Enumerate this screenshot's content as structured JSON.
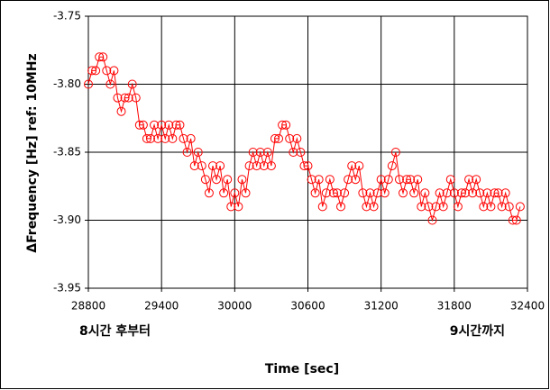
{
  "chart_data": {
    "type": "line",
    "x_label": "Time [sec]",
    "y_label": "ΔFrequency [Hz] ref: 10MHz",
    "annotations": [
      "8시간 후부터",
      "9시간까지"
    ],
    "xlim": [
      28800,
      32400
    ],
    "xticks": [
      28800,
      29400,
      30000,
      30600,
      31200,
      31800,
      32400
    ],
    "ylim": [
      -3.95,
      -3.75
    ],
    "yticks": [
      -3.75,
      {
        "value": -3.8,
        "label": "-3.80"
      },
      -3.85,
      {
        "value": -3.9,
        "label": "-3.90"
      },
      -3.95
    ],
    "grid": true,
    "x": [
      28800,
      28830,
      28860,
      28890,
      28920,
      28950,
      28980,
      29010,
      29040,
      29070,
      29100,
      29130,
      29160,
      29190,
      29220,
      29250,
      29280,
      29310,
      29340,
      29370,
      29400,
      29430,
      29460,
      29490,
      29520,
      29550,
      29580,
      29610,
      29640,
      29670,
      29700,
      29730,
      29760,
      29790,
      29820,
      29850,
      29880,
      29910,
      29940,
      29970,
      30000,
      30030,
      30060,
      30090,
      30120,
      30150,
      30180,
      30210,
      30240,
      30270,
      30300,
      30330,
      30360,
      30390,
      30420,
      30450,
      30480,
      30510,
      30540,
      30570,
      30600,
      30630,
      30660,
      30690,
      30720,
      30750,
      30780,
      30810,
      30840,
      30870,
      30900,
      30930,
      30960,
      30990,
      31020,
      31050,
      31080,
      31110,
      31140,
      31170,
      31200,
      31230,
      31260,
      31290,
      31320,
      31350,
      31380,
      31410,
      31440,
      31470,
      31500,
      31530,
      31560,
      31590,
      31620,
      31650,
      31680,
      31710,
      31740,
      31770,
      31800,
      31830,
      31860,
      31890,
      31920,
      31950,
      31980,
      32010,
      32040,
      32070,
      32100,
      32130,
      32160,
      32190,
      32220,
      32250,
      32280,
      32310,
      32340
    ],
    "series": [
      {
        "color": "#ff0000",
        "values": [
          -3.8,
          -3.79,
          -3.79,
          -3.78,
          -3.78,
          -3.79,
          -3.8,
          -3.79,
          -3.81,
          -3.82,
          -3.81,
          -3.81,
          -3.8,
          -3.81,
          -3.83,
          -3.83,
          -3.84,
          -3.84,
          -3.83,
          -3.84,
          -3.83,
          -3.84,
          -3.83,
          -3.84,
          -3.83,
          -3.83,
          -3.84,
          -3.85,
          -3.84,
          -3.86,
          -3.85,
          -3.86,
          -3.87,
          -3.88,
          -3.86,
          -3.87,
          -3.86,
          -3.88,
          -3.87,
          -3.89,
          -3.88,
          -3.89,
          -3.87,
          -3.88,
          -3.86,
          -3.85,
          -3.86,
          -3.85,
          -3.86,
          -3.85,
          -3.86,
          -3.84,
          -3.84,
          -3.83,
          -3.83,
          -3.84,
          -3.85,
          -3.84,
          -3.85,
          -3.86,
          -3.86,
          -3.87,
          -3.88,
          -3.87,
          -3.89,
          -3.88,
          -3.87,
          -3.88,
          -3.88,
          -3.89,
          -3.88,
          -3.87,
          -3.86,
          -3.87,
          -3.86,
          -3.88,
          -3.89,
          -3.88,
          -3.89,
          -3.88,
          -3.87,
          -3.88,
          -3.87,
          -3.86,
          -3.85,
          -3.87,
          -3.88,
          -3.87,
          -3.87,
          -3.88,
          -3.87,
          -3.89,
          -3.88,
          -3.89,
          -3.9,
          -3.89,
          -3.88,
          -3.89,
          -3.88,
          -3.87,
          -3.88,
          -3.89,
          -3.88,
          -3.88,
          -3.87,
          -3.88,
          -3.87,
          -3.88,
          -3.89,
          -3.88,
          -3.89,
          -3.88,
          -3.88,
          -3.89,
          -3.88,
          -3.89,
          -3.9,
          -3.9,
          -3.89
        ]
      }
    ]
  }
}
